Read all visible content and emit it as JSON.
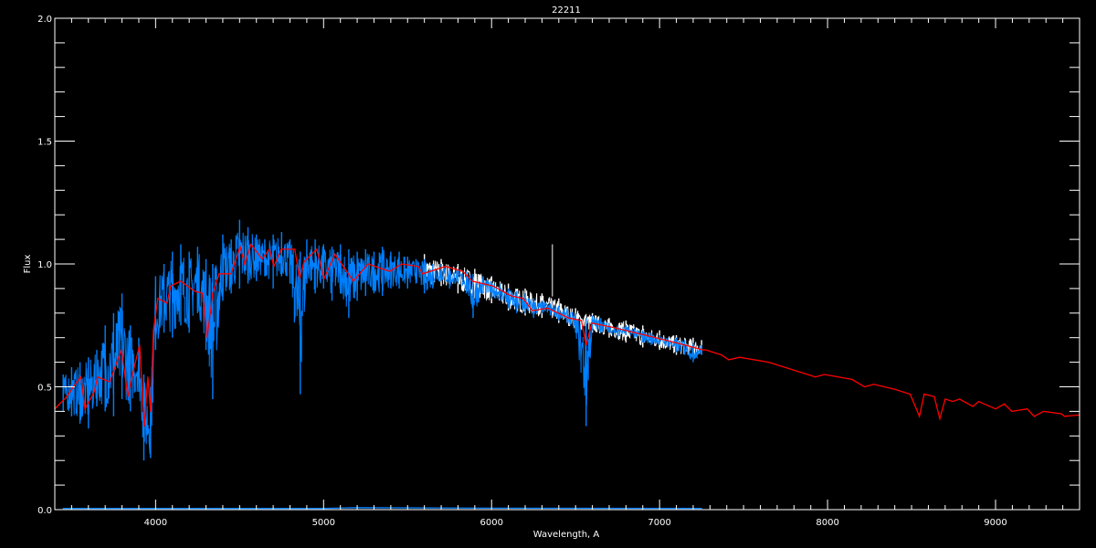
{
  "chart_data": {
    "type": "line",
    "title": "22211",
    "xlabel": "Wavelength, A",
    "ylabel": "Flux",
    "xlim": [
      3400,
      9500
    ],
    "ylim": [
      0.0,
      2.0
    ],
    "x_ticks": [
      "4000",
      "5000",
      "6000",
      "7000",
      "8000",
      "9000"
    ],
    "x_tick_values": [
      4000,
      5000,
      6000,
      7000,
      8000,
      9000
    ],
    "y_ticks": [
      "0.0",
      "0.5",
      "1.0",
      "1.5",
      "2.0"
    ],
    "y_tick_values": [
      0.0,
      0.5,
      1.0,
      1.5,
      2.0
    ],
    "grid": false,
    "background": "#000000",
    "colors": {
      "axes": "#ffffff",
      "observed": "#0080ff",
      "reference": "#ffffff",
      "model": "#ff0000",
      "error": "#0080ff"
    },
    "series": [
      {
        "role": "reference",
        "color": "#ffffff",
        "envelope_columns": [
          "wavelength",
          "flux_min",
          "flux_max"
        ],
        "envelope": [
          [
            5600,
            0.9,
            1.04
          ],
          [
            5700,
            0.91,
            1.02
          ],
          [
            5800,
            0.88,
            1.0
          ],
          [
            5900,
            0.86,
            0.98
          ],
          [
            6000,
            0.84,
            0.95
          ],
          [
            6100,
            0.81,
            0.92
          ],
          [
            6200,
            0.79,
            0.9
          ],
          [
            6300,
            0.78,
            0.88
          ],
          [
            6400,
            0.76,
            0.86
          ],
          [
            6500,
            0.73,
            0.82
          ],
          [
            6600,
            0.72,
            0.8
          ],
          [
            6700,
            0.7,
            0.78
          ],
          [
            6800,
            0.68,
            0.77
          ],
          [
            6900,
            0.66,
            0.75
          ],
          [
            7000,
            0.65,
            0.73
          ],
          [
            7100,
            0.63,
            0.71
          ],
          [
            7200,
            0.62,
            0.7
          ],
          [
            7250,
            0.63,
            0.69
          ]
        ],
        "spike": [
          6362,
          1.08
        ]
      },
      {
        "role": "observed",
        "color": "#0080ff",
        "envelope_columns": [
          "wavelength",
          "flux_min",
          "flux_max"
        ],
        "envelope": [
          [
            3450,
            0.4,
            0.55
          ],
          [
            3500,
            0.38,
            0.58
          ],
          [
            3550,
            0.35,
            0.6
          ],
          [
            3600,
            0.33,
            0.62
          ],
          [
            3650,
            0.42,
            0.65
          ],
          [
            3700,
            0.4,
            0.75
          ],
          [
            3750,
            0.38,
            0.8
          ],
          [
            3800,
            0.45,
            0.88
          ],
          [
            3850,
            0.4,
            0.75
          ],
          [
            3900,
            0.48,
            0.7
          ],
          [
            3930,
            0.2,
            0.55
          ],
          [
            3970,
            0.21,
            0.5
          ],
          [
            4000,
            0.65,
            0.95
          ],
          [
            4050,
            0.72,
            1.0
          ],
          [
            4100,
            0.7,
            1.05
          ],
          [
            4150,
            0.75,
            1.08
          ],
          [
            4200,
            0.72,
            1.05
          ],
          [
            4250,
            0.8,
            1.07
          ],
          [
            4300,
            0.65,
            1.02
          ],
          [
            4340,
            0.45,
            1.0
          ],
          [
            4400,
            0.85,
            1.12
          ],
          [
            4450,
            0.88,
            1.1
          ],
          [
            4500,
            0.9,
            1.18
          ],
          [
            4550,
            0.92,
            1.15
          ],
          [
            4600,
            0.93,
            1.12
          ],
          [
            4650,
            0.95,
            1.1
          ],
          [
            4700,
            0.9,
            1.12
          ],
          [
            4750,
            0.95,
            1.13
          ],
          [
            4800,
            0.92,
            1.1
          ],
          [
            4861,
            0.47,
            1.05
          ],
          [
            4900,
            0.92,
            1.1
          ],
          [
            4950,
            0.88,
            1.1
          ],
          [
            5000,
            0.9,
            1.08
          ],
          [
            5050,
            0.85,
            1.07
          ],
          [
            5100,
            0.88,
            1.08
          ],
          [
            5150,
            0.78,
            1.06
          ],
          [
            5200,
            0.85,
            1.05
          ],
          [
            5250,
            0.87,
            1.06
          ],
          [
            5300,
            0.88,
            1.05
          ],
          [
            5350,
            0.87,
            1.07
          ],
          [
            5400,
            0.9,
            1.05
          ],
          [
            5450,
            0.9,
            1.05
          ],
          [
            5500,
            0.9,
            1.03
          ],
          [
            5550,
            0.92,
            1.02
          ],
          [
            5600,
            0.88,
            1.02
          ],
          [
            5650,
            0.9,
            1.0
          ],
          [
            5700,
            0.93,
            1.0
          ],
          [
            5750,
            0.9,
            0.99
          ],
          [
            5800,
            0.92,
            0.98
          ],
          [
            5850,
            0.88,
            0.97
          ],
          [
            5890,
            0.78,
            0.96
          ],
          [
            5950,
            0.88,
            0.95
          ],
          [
            6000,
            0.86,
            0.93
          ],
          [
            6050,
            0.85,
            0.92
          ],
          [
            6100,
            0.82,
            0.9
          ],
          [
            6150,
            0.8,
            0.89
          ],
          [
            6200,
            0.8,
            0.88
          ],
          [
            6250,
            0.78,
            0.86
          ],
          [
            6300,
            0.8,
            0.85
          ],
          [
            6350,
            0.79,
            0.84
          ],
          [
            6400,
            0.77,
            0.83
          ],
          [
            6450,
            0.76,
            0.82
          ],
          [
            6500,
            0.72,
            0.8
          ],
          [
            6563,
            0.34,
            0.78
          ],
          [
            6600,
            0.73,
            0.79
          ],
          [
            6650,
            0.72,
            0.78
          ],
          [
            6700,
            0.72,
            0.76
          ],
          [
            6750,
            0.7,
            0.75
          ],
          [
            6800,
            0.71,
            0.75
          ],
          [
            6850,
            0.7,
            0.74
          ],
          [
            6900,
            0.68,
            0.73
          ],
          [
            6950,
            0.67,
            0.72
          ],
          [
            7000,
            0.67,
            0.71
          ],
          [
            7050,
            0.66,
            0.7
          ],
          [
            7100,
            0.64,
            0.7
          ],
          [
            7150,
            0.63,
            0.69
          ],
          [
            7200,
            0.6,
            0.68
          ],
          [
            7250,
            0.63,
            0.67
          ]
        ]
      },
      {
        "role": "model",
        "color": "#ff0000",
        "points": [
          [
            3400,
            0.41
          ],
          [
            3472,
            0.46
          ],
          [
            3510,
            0.5
          ],
          [
            3555,
            0.54
          ],
          [
            3580,
            0.41
          ],
          [
            3635,
            0.48
          ],
          [
            3655,
            0.54
          ],
          [
            3726,
            0.52
          ],
          [
            3797,
            0.65
          ],
          [
            3835,
            0.46
          ],
          [
            3862,
            0.55
          ],
          [
            3905,
            0.67
          ],
          [
            3933,
            0.34
          ],
          [
            3954,
            0.54
          ],
          [
            3970,
            0.4
          ],
          [
            3987,
            0.73
          ],
          [
            4014,
            0.86
          ],
          [
            4068,
            0.84
          ],
          [
            4090,
            0.91
          ],
          [
            4150,
            0.93
          ],
          [
            4231,
            0.89
          ],
          [
            4280,
            0.88
          ],
          [
            4307,
            0.7
          ],
          [
            4340,
            0.88
          ],
          [
            4378,
            0.96
          ],
          [
            4449,
            0.96
          ],
          [
            4503,
            1.07
          ],
          [
            4530,
            1.0
          ],
          [
            4568,
            1.08
          ],
          [
            4634,
            1.02
          ],
          [
            4677,
            1.06
          ],
          [
            4704,
            0.99
          ],
          [
            4748,
            1.06
          ],
          [
            4829,
            1.06
          ],
          [
            4857,
            0.94
          ],
          [
            4884,
            1.01
          ],
          [
            4960,
            1.06
          ],
          [
            5003,
            0.94
          ],
          [
            5068,
            1.04
          ],
          [
            5177,
            0.93
          ],
          [
            5264,
            1.0
          ],
          [
            5394,
            0.97
          ],
          [
            5465,
            1.0
          ],
          [
            5563,
            0.99
          ],
          [
            5590,
            0.96
          ],
          [
            5726,
            0.99
          ],
          [
            5829,
            0.97
          ],
          [
            5884,
            0.93
          ],
          [
            6009,
            0.91
          ],
          [
            6117,
            0.87
          ],
          [
            6188,
            0.86
          ],
          [
            6242,
            0.81
          ],
          [
            6335,
            0.82
          ],
          [
            6460,
            0.78
          ],
          [
            6535,
            0.77
          ],
          [
            6563,
            0.67
          ],
          [
            6596,
            0.76
          ],
          [
            6732,
            0.74
          ],
          [
            6916,
            0.71
          ],
          [
            7096,
            0.68
          ],
          [
            7258,
            0.65
          ],
          [
            7275,
            0.65
          ],
          [
            7367,
            0.63
          ],
          [
            7411,
            0.61
          ],
          [
            7476,
            0.62
          ],
          [
            7650,
            0.6
          ],
          [
            7927,
            0.54
          ],
          [
            7981,
            0.55
          ],
          [
            8145,
            0.53
          ],
          [
            8220,
            0.5
          ],
          [
            8275,
            0.51
          ],
          [
            8400,
            0.49
          ],
          [
            8492,
            0.47
          ],
          [
            8510,
            0.44
          ],
          [
            8547,
            0.38
          ],
          [
            8575,
            0.47
          ],
          [
            8635,
            0.46
          ],
          [
            8668,
            0.37
          ],
          [
            8700,
            0.45
          ],
          [
            8745,
            0.44
          ],
          [
            8785,
            0.45
          ],
          [
            8865,
            0.42
          ],
          [
            8900,
            0.44
          ],
          [
            9000,
            0.41
          ],
          [
            9052,
            0.43
          ],
          [
            9097,
            0.4
          ],
          [
            9188,
            0.41
          ],
          [
            9230,
            0.38
          ],
          [
            9285,
            0.4
          ],
          [
            9393,
            0.39
          ],
          [
            9410,
            0.38
          ],
          [
            9500,
            0.385
          ]
        ]
      },
      {
        "role": "error",
        "color": "#0080ff",
        "points": [
          [
            3450,
            0.005
          ],
          [
            5000,
            0.005
          ],
          [
            5200,
            0.008
          ],
          [
            6000,
            0.006
          ],
          [
            7250,
            0.005
          ]
        ]
      }
    ]
  }
}
